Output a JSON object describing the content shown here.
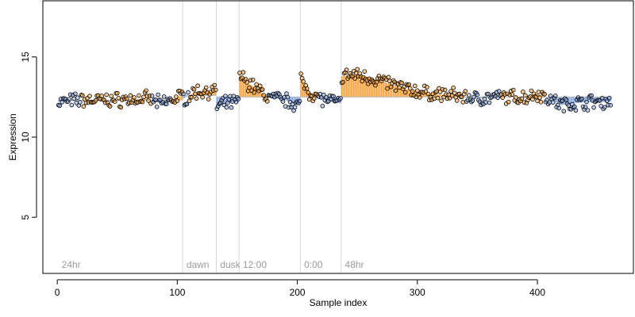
{
  "chart_data": {
    "type": "scatter",
    "xlabel": "Sample index",
    "ylabel": "Expression",
    "xlim": [
      -12,
      480
    ],
    "ylim": [
      1.5,
      18.5
    ],
    "xticks": [
      0,
      100,
      200,
      300,
      400
    ],
    "yticks": [
      5,
      10,
      15
    ],
    "grid": false,
    "colors": {
      "above": "#f5a23c",
      "below": "#86a6e0",
      "point_edge": "#000000",
      "divider": "#d8d8d8",
      "segment_label": "#9a9a9a",
      "axis": "#000000"
    },
    "segments": [
      {
        "label": "24hr",
        "start": 1,
        "end": 104
      },
      {
        "label": "dawn",
        "start": 105,
        "end": 132
      },
      {
        "label": "dusk",
        "start": 133,
        "end": 151
      },
      {
        "label": "12:00",
        "start": 152,
        "end": 202
      },
      {
        "label": "0:00",
        "start": 203,
        "end": 236
      },
      {
        "label": "48hr",
        "start": 237,
        "end": 461
      }
    ],
    "fitted_levels": [
      {
        "from": 1,
        "to": 104,
        "level": 12.3
      },
      {
        "from": 105,
        "to": 132,
        "level": 12.6
      },
      {
        "from": 133,
        "to": 151,
        "level": 12.5
      },
      {
        "from": 152,
        "to": 202,
        "level": 12.5
      },
      {
        "from": 203,
        "to": 236,
        "level": 12.5
      },
      {
        "from": 237,
        "to": 461,
        "level": 12.5
      }
    ],
    "profile": [
      [
        1,
        12.2
      ],
      [
        20,
        12.3
      ],
      [
        40,
        12.3
      ],
      [
        60,
        12.35
      ],
      [
        75,
        12.4
      ],
      [
        85,
        12.1
      ],
      [
        95,
        12.3
      ],
      [
        104,
        12.6
      ],
      [
        105,
        12.4
      ],
      [
        115,
        12.8
      ],
      [
        125,
        12.9
      ],
      [
        132,
        12.8
      ],
      [
        133,
        11.9
      ],
      [
        141,
        12.1
      ],
      [
        151,
        12.2
      ],
      [
        152,
        13.9
      ],
      [
        158,
        13.4
      ],
      [
        165,
        13.1
      ],
      [
        175,
        12.5
      ],
      [
        190,
        12.3
      ],
      [
        202,
        12.0
      ],
      [
        203,
        13.6
      ],
      [
        210,
        12.8
      ],
      [
        220,
        12.4
      ],
      [
        230,
        12.2
      ],
      [
        236,
        12.1
      ],
      [
        237,
        13.8
      ],
      [
        250,
        13.9
      ],
      [
        270,
        13.5
      ],
      [
        290,
        13.0
      ],
      [
        310,
        12.7
      ],
      [
        330,
        12.6
      ],
      [
        350,
        12.4
      ],
      [
        370,
        12.5
      ],
      [
        390,
        12.5
      ],
      [
        400,
        12.7
      ],
      [
        410,
        12.4
      ],
      [
        420,
        12.0
      ],
      [
        430,
        12.1
      ],
      [
        445,
        12.2
      ],
      [
        461,
        12.2
      ]
    ]
  }
}
